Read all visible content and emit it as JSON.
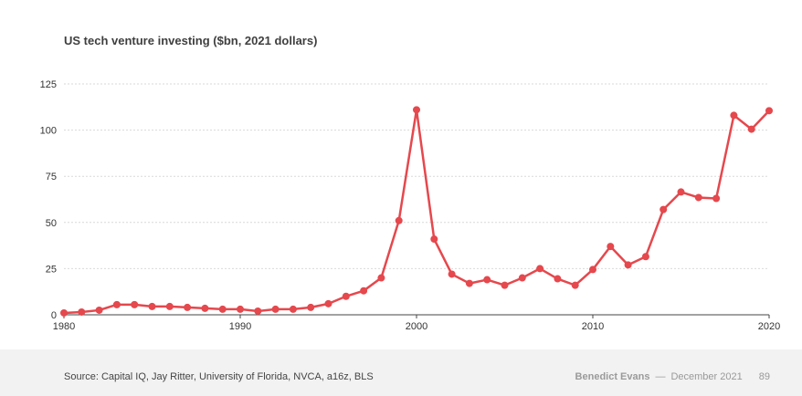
{
  "header": {
    "title": "US tech venture investing ($bn, 2021 dollars)"
  },
  "footer": {
    "source": "Source: Capital IQ, Jay Ritter, University of Florida, NVCA, a16z, BLS",
    "author": "Benedict Evans",
    "separator": "—",
    "date": "December 2021",
    "page": "89"
  },
  "chart_data": {
    "type": "line",
    "title": "US tech venture investing ($bn, 2021 dollars)",
    "xlabel": "",
    "ylabel": "",
    "xlim": [
      1980,
      2020
    ],
    "ylim": [
      0,
      125
    ],
    "x_ticks": [
      1980,
      1990,
      2000,
      2010,
      2020
    ],
    "y_ticks": [
      0,
      25,
      50,
      75,
      100,
      125
    ],
    "grid": true,
    "color": "#e5484d",
    "series": [
      {
        "x": [
          1980,
          1981,
          1982,
          1983,
          1984,
          1985,
          1986,
          1987,
          1988,
          1989,
          1990,
          1991,
          1992,
          1993,
          1994,
          1995,
          1996,
          1997,
          1998,
          1999,
          2000,
          2001,
          2002,
          2003,
          2004,
          2005,
          2006,
          2007,
          2008,
          2009,
          2010,
          2011,
          2012,
          2013,
          2014,
          2015,
          2016,
          2017,
          2018,
          2019,
          2020
        ],
        "values": [
          1,
          1.5,
          2.5,
          5.5,
          5.5,
          4.5,
          4.5,
          4,
          3.5,
          3,
          3,
          2,
          3,
          3,
          4,
          6,
          10,
          13,
          20,
          51,
          111,
          41,
          22,
          17,
          19,
          16,
          20,
          25,
          19.5,
          16,
          24.5,
          37,
          27,
          31.5,
          57,
          66.5,
          63.5,
          63,
          108,
          100.5,
          110.5
        ]
      }
    ]
  }
}
